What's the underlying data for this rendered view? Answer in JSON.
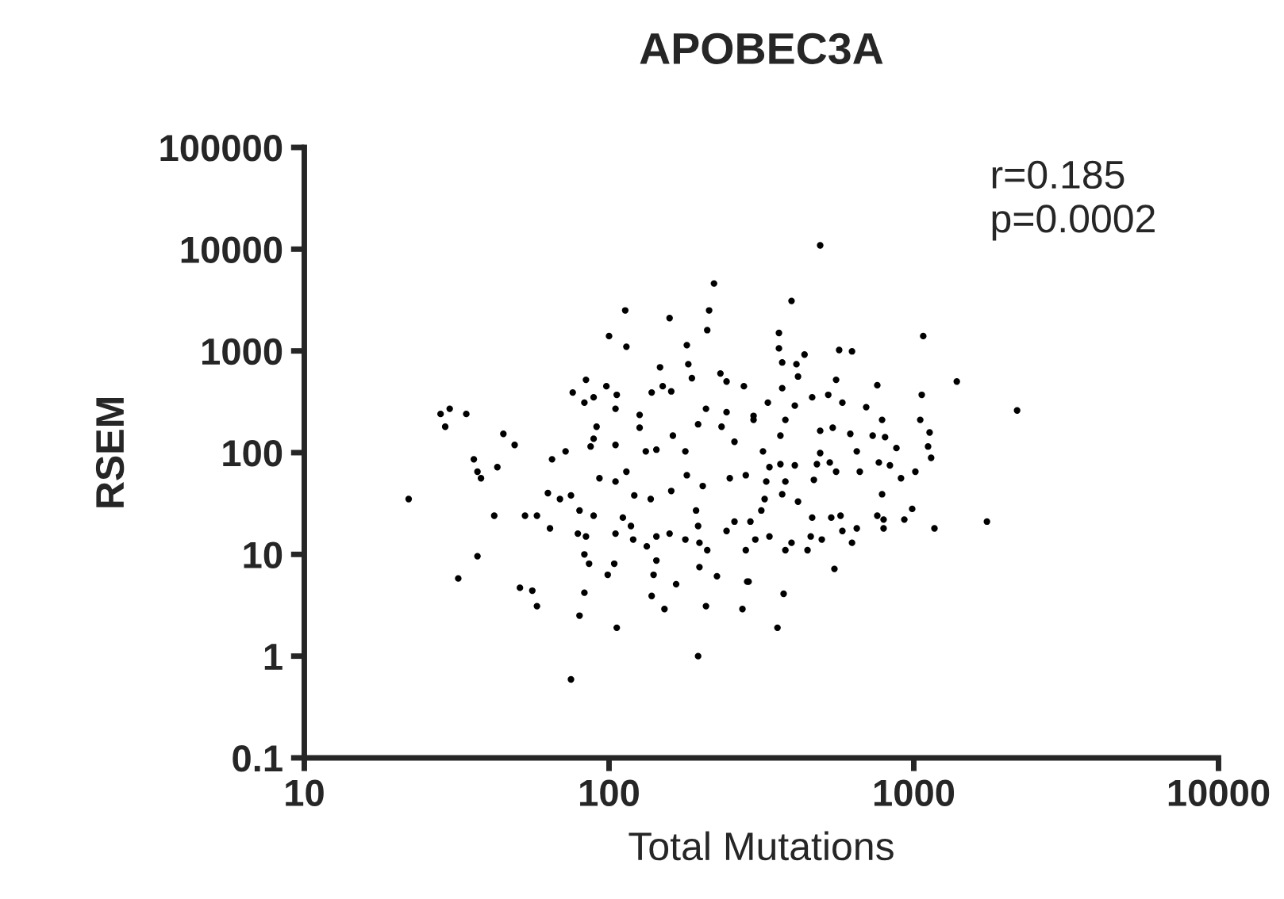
{
  "chart_data": {
    "type": "scatter",
    "title": "APOBEC3A",
    "xlabel": "Total Mutations",
    "ylabel": "RSEM",
    "annotations": [
      "r=0.185",
      "p=0.0002"
    ],
    "log": "xy",
    "grid": false,
    "legend": false,
    "marker": "circle",
    "xlim": [
      10,
      10000
    ],
    "xticks": [
      10,
      100,
      1000,
      10000
    ],
    "ylim": [
      0.1,
      100000
    ],
    "yticks": [
      0.1,
      1,
      10,
      100,
      1000,
      10000,
      100000
    ],
    "series": [
      {
        "color": "#000000",
        "x": [
          221,
          213,
          210,
          113,
          158,
          100,
          114,
          180,
          147,
          182,
          187,
          84,
          76,
          83,
          89,
          98,
          106,
          138,
          150,
          160,
          232,
          243,
          277,
          28,
          30,
          29,
          34,
          45,
          49,
          36,
          37,
          38,
          43,
          22,
          42,
          37,
          32,
          51,
          56,
          58,
          53,
          58,
          64,
          63,
          65,
          72,
          105,
          126,
          91,
          89,
          87,
          105,
          126,
          162,
          143,
          132,
          178,
          208,
          196,
          234,
          243,
          258,
          298,
          93,
          105,
          114,
          121,
          137,
          160,
          180,
          203,
          249,
          281,
          69,
          75,
          80,
          79,
          84,
          89,
          111,
          118,
          105,
          120,
          133,
          143,
          158,
          178,
          193,
          196,
          198,
          210,
          243,
          258,
          281,
          83,
          86,
          99,
          104,
          140,
          143,
          166,
          198,
          226,
          284,
          83,
          80,
          106,
          138,
          152,
          208,
          274,
          196,
          75,
          493,
          397,
          361,
          361,
          370,
          438,
          412,
          417,
          569,
          627,
          1074,
          1384,
          2183,
          556,
          370,
          332,
          407,
          464,
          524,
          583,
          759,
          698,
          1062,
          1050,
          787,
          1127,
          1114,
          1140,
          877,
          805,
          733,
          619,
          493,
          542,
          379,
          298,
          365,
          320,
          493,
          530,
          481,
          650,
          768,
          835,
          665,
          556,
          407,
          365,
          336,
          470,
          379,
          328,
          908,
          1012,
          787,
          988,
          759,
          796,
          931,
          796,
          1169,
          1738,
          575,
          536,
          464,
          417,
          370,
          324,
          316,
          291,
          302,
          336,
          397,
          459,
          499,
          583,
          627,
          650,
          379,
          448,
          549,
          287,
          374,
          357
        ],
        "values": [
          4600,
          2500,
          1600,
          2500,
          2100,
          1400,
          1100,
          1140,
          690,
          740,
          540,
          520,
          390,
          310,
          350,
          450,
          370,
          390,
          450,
          400,
          600,
          500,
          450,
          240,
          270,
          180,
          240,
          153,
          119,
          86,
          65,
          56,
          72,
          35,
          24,
          9.6,
          5.8,
          4.7,
          4.4,
          3.1,
          24,
          24,
          18,
          40,
          86,
          103,
          270,
          235,
          180,
          137,
          115,
          119,
          176,
          147,
          107,
          103,
          103,
          270,
          190,
          180,
          250,
          128,
          230,
          56,
          52,
          65,
          38,
          35,
          42,
          60,
          47,
          56,
          60,
          35,
          38,
          27,
          16,
          15,
          24,
          23,
          19,
          16,
          14,
          12,
          15,
          16,
          14,
          27,
          19,
          13,
          11,
          17,
          21,
          11,
          10,
          8.1,
          6.3,
          8.1,
          6.3,
          8.7,
          5.1,
          7.5,
          6.1,
          5.4,
          4.2,
          2.5,
          1.9,
          3.9,
          2.9,
          3.1,
          2.9,
          1.0,
          0.59,
          10900,
          3100,
          1500,
          1060,
          770,
          920,
          740,
          560,
          1020,
          990,
          1400,
          500,
          260,
          520,
          430,
          310,
          290,
          350,
          370,
          310,
          460,
          280,
          370,
          210,
          210,
          158,
          115,
          89,
          111,
          142,
          147,
          153,
          164,
          176,
          210,
          210,
          147,
          103,
          99,
          80,
          77,
          103,
          80,
          75,
          65,
          65,
          75,
          77,
          72,
          54,
          52,
          52,
          56,
          65,
          39,
          28,
          24,
          22,
          22,
          18,
          18,
          21,
          24,
          23,
          23,
          33,
          39,
          35,
          27,
          21,
          14,
          15,
          13,
          15,
          14,
          17,
          13,
          18,
          11,
          11,
          7.2,
          5.4,
          4.1,
          1.9
        ]
      }
    ]
  }
}
